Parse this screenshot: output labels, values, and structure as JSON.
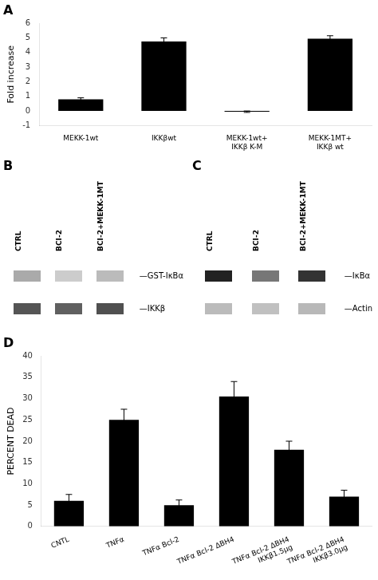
{
  "chart_data": [
    {
      "type": "bar",
      "title": "A",
      "categories": [
        "MEKK-1wt",
        "IKKβwt",
        "MEKK-1wt+\nIKKβ K-M",
        "MEKK-1MT+\nIKKβ wt"
      ],
      "values": [
        0.8,
        4.75,
        -0.05,
        4.95
      ],
      "errors": [
        0.1,
        0.25,
        0.05,
        0.2
      ],
      "y_label": "Fold increase",
      "ylim": [
        -1,
        6
      ],
      "yticks": [
        -1,
        0,
        1,
        2,
        3,
        4,
        5,
        6
      ],
      "color": "#000000",
      "grid": false,
      "legend": false
    },
    {
      "type": "blot",
      "title": "B",
      "categories": [
        "CTRL",
        "BCI-2",
        "BCI-2+MEKK-1MT"
      ],
      "series": [
        {
          "name": "—GST-IκBα",
          "colors": [
            "#aaaaaa",
            "#cccccc",
            "#bbbbbb"
          ]
        },
        {
          "name": "—IKKβ",
          "colors": [
            "#555555",
            "#606060",
            "#505050"
          ]
        }
      ],
      "grid": false,
      "legend": false
    },
    {
      "type": "blot",
      "title": "C",
      "categories": [
        "CTRL",
        "BCI-2",
        "BCI-2+MEKK-1MT"
      ],
      "series": [
        {
          "name": "—IκBα",
          "colors": [
            "#222222",
            "#777777",
            "#333333"
          ]
        },
        {
          "name": "—Actin",
          "colors": [
            "#bbbbbb",
            "#c0c0c0",
            "#b8b8b8"
          ]
        }
      ],
      "grid": false,
      "legend": false
    },
    {
      "type": "bar",
      "title": "D",
      "categories": [
        "CNTL",
        "TNFα",
        "TNFα Bcl-2",
        "TNFα Bcl-2 ΔBH4",
        "TNFα Bcl-2 ΔBH4\nIKKβ1.5μg",
        "TNFα Bcl-2 ΔBH4\nIKKβ3.0μg"
      ],
      "values": [
        6.0,
        25.0,
        5.0,
        30.5,
        18.0,
        7.0
      ],
      "errors": [
        1.5,
        2.5,
        1.2,
        3.5,
        2.0,
        1.5
      ],
      "y_label": "PERCENT DEAD",
      "ylim": [
        0,
        40
      ],
      "yticks": [
        0,
        5,
        10,
        15,
        20,
        25,
        30,
        35,
        40
      ],
      "color": "#000000",
      "grid": false,
      "legend": false
    }
  ]
}
